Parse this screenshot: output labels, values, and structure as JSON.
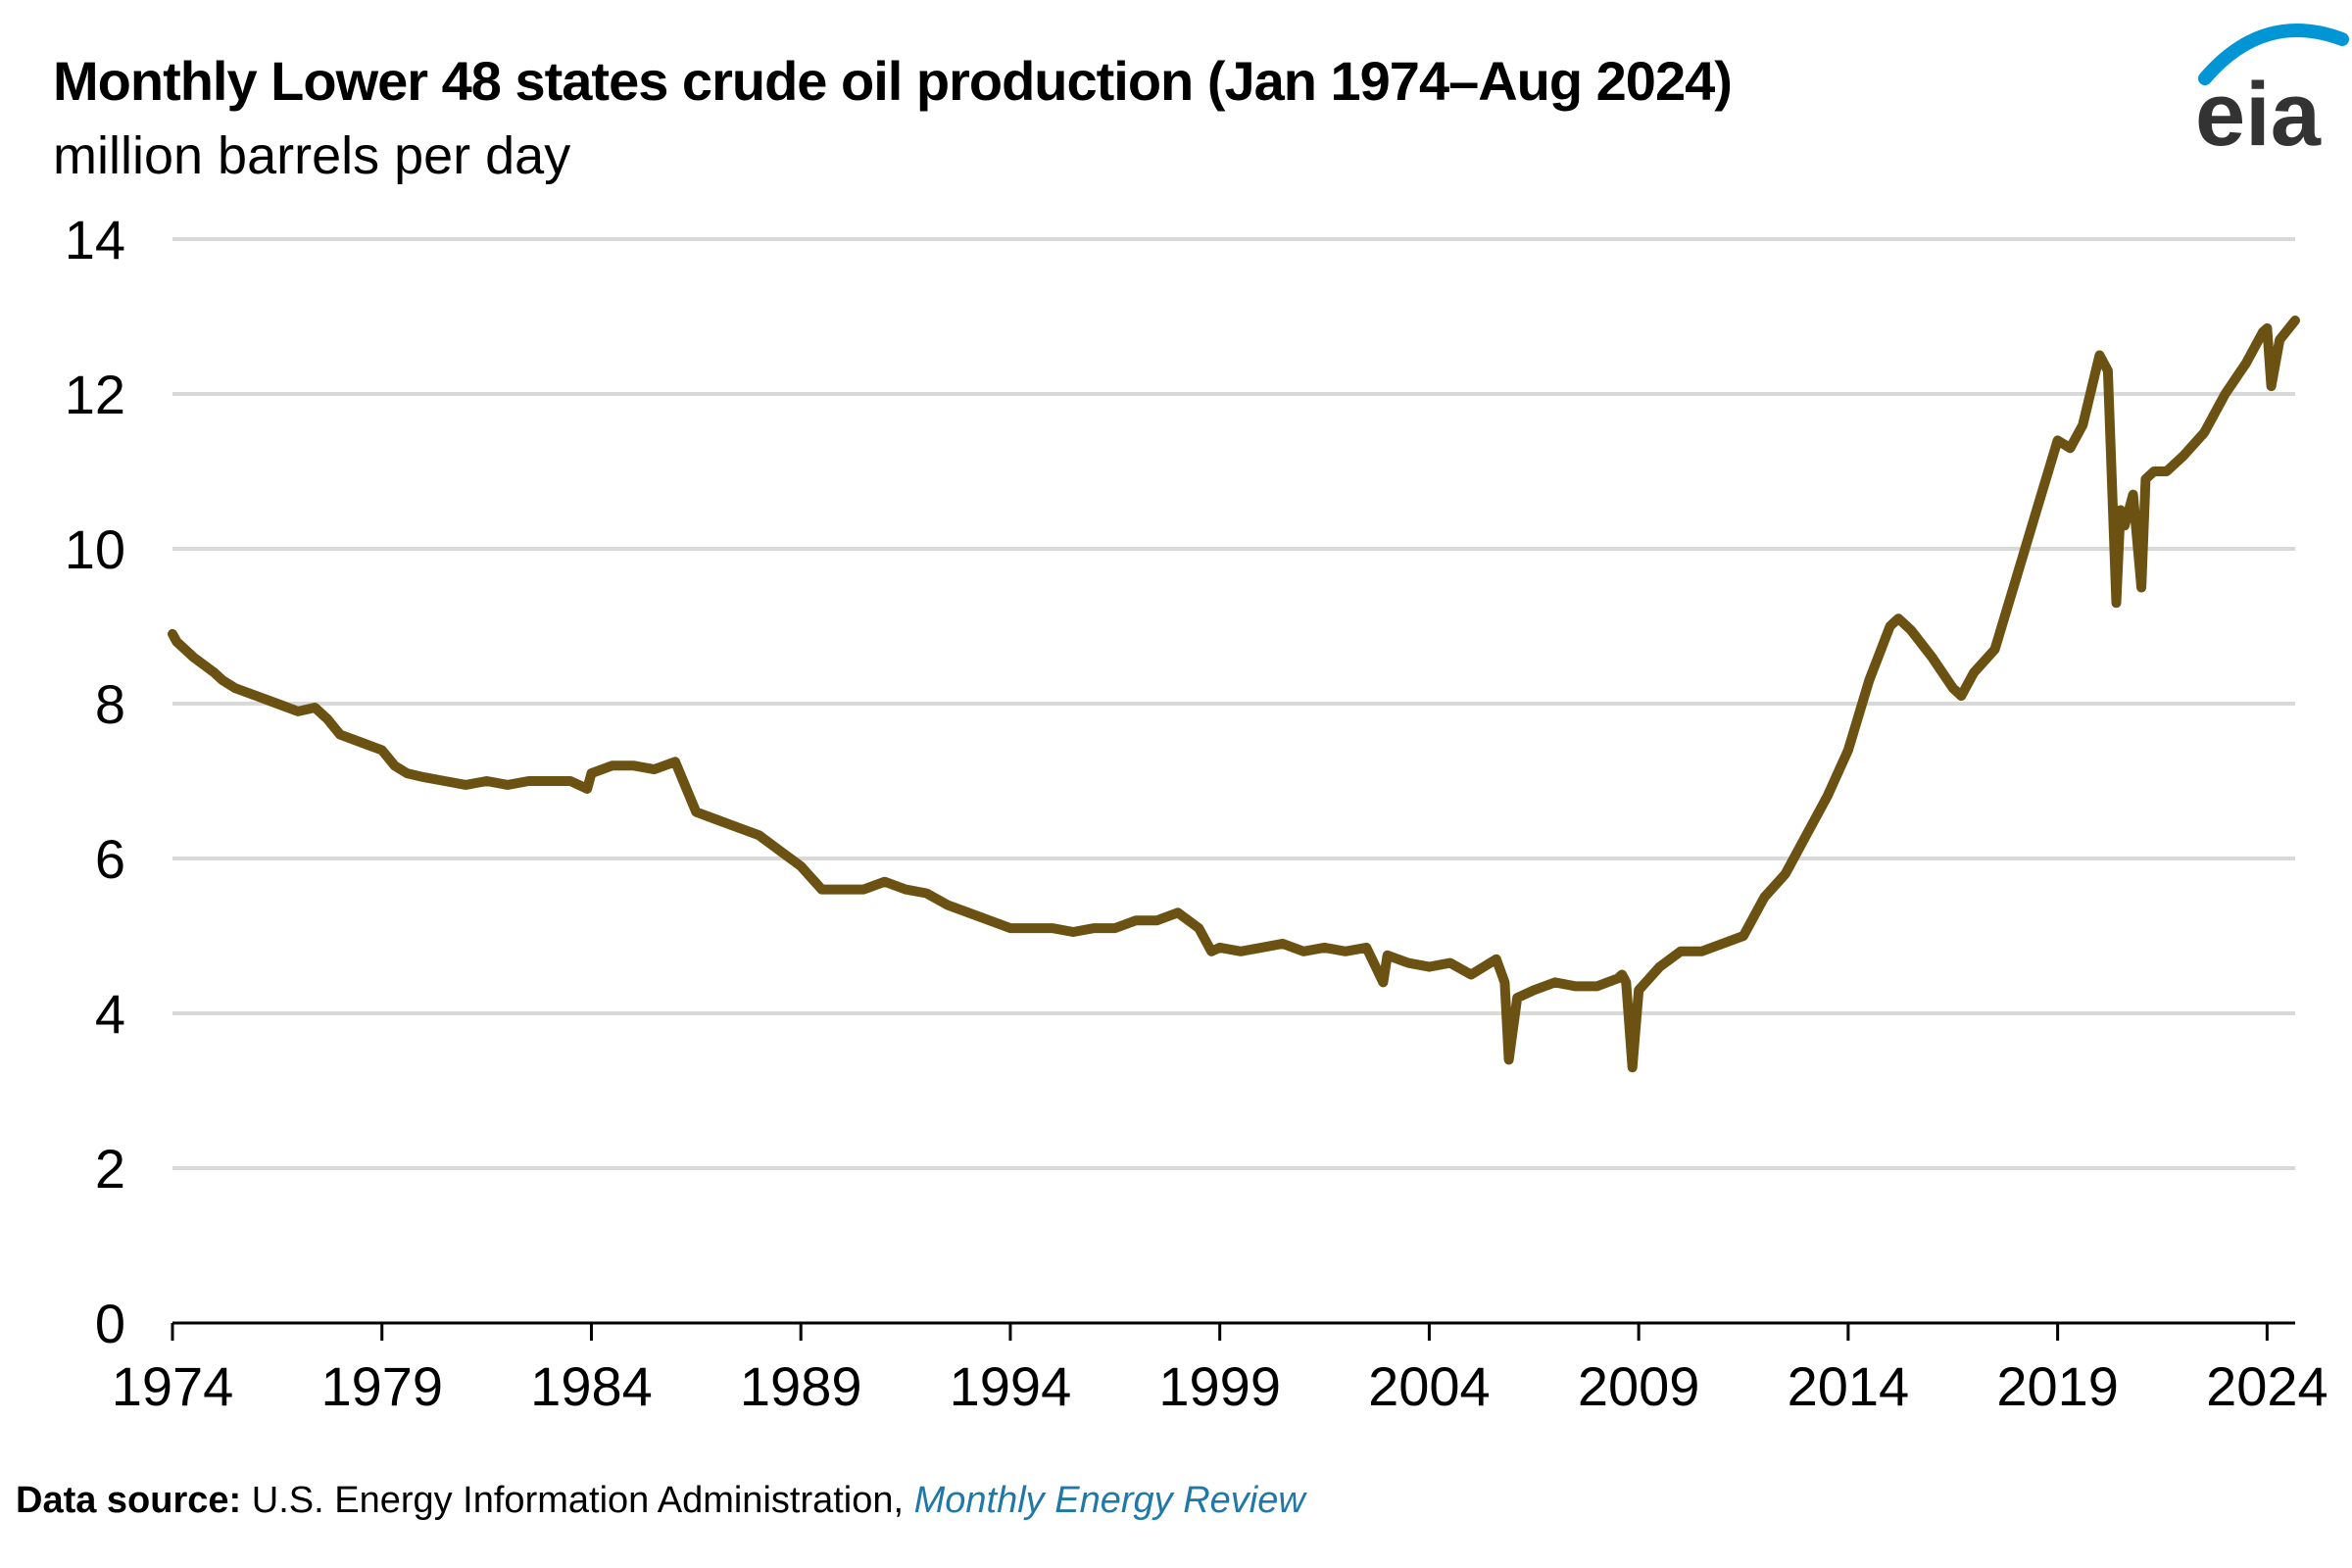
{
  "header": {
    "title": "Monthly Lower 48 states crude oil production (Jan 1974–Aug 2024)",
    "subtitle": "million barrels per day"
  },
  "logo": {
    "text": "eia",
    "icon": "eia-logo",
    "arc_color": "#0096d6",
    "text_color": "#333333"
  },
  "footer": {
    "source_label": "Data source:",
    "source_text": " U.S. Energy Information Administration, ",
    "source_link": "Monthly Energy Review",
    "link_color": "#1f78a8"
  },
  "chart_data": {
    "type": "line",
    "title": "Monthly Lower 48 states crude oil production (Jan 1974–Aug 2024)",
    "ylabel": "million barrels per day",
    "xlim": [
      1974,
      2024.67
    ],
    "ylim": [
      0,
      14
    ],
    "yticks": [
      0,
      2,
      4,
      6,
      8,
      10,
      12,
      14
    ],
    "xticks": [
      1974,
      1979,
      1984,
      1989,
      1994,
      1999,
      2004,
      2009,
      2014,
      2019,
      2024
    ],
    "grid": true,
    "line_color": "#6b5213",
    "series": [
      {
        "x": [
          1974.0,
          1974.1,
          1974.5,
          1975.0,
          1975.2,
          1975.5,
          1976.0,
          1976.5,
          1977.0,
          1977.4,
          1977.7,
          1978.0,
          1978.5,
          1979.0,
          1979.3,
          1979.6,
          1980.0,
          1980.5,
          1981.0,
          1981.5,
          1982.0,
          1982.5,
          1983.0,
          1983.5,
          1983.9,
          1984.0,
          1984.5,
          1985.0,
          1985.5,
          1986.0,
          1986.5,
          1987.0,
          1987.5,
          1988.0,
          1988.5,
          1989.0,
          1989.5,
          1990.0,
          1990.5,
          1991.0,
          1991.5,
          1992.0,
          1992.5,
          1993.0,
          1993.5,
          1994.0,
          1994.5,
          1995.0,
          1995.5,
          1996.0,
          1996.5,
          1997.0,
          1997.5,
          1998.0,
          1998.5,
          1998.8,
          1999.0,
          1999.5,
          2000.0,
          2000.5,
          2001.0,
          2001.5,
          2002.0,
          2002.5,
          2002.9,
          2003.0,
          2003.5,
          2004.0,
          2004.5,
          2005.0,
          2005.3,
          2005.6,
          2005.8,
          2005.9,
          2006.1,
          2006.5,
          2007.0,
          2007.5,
          2008.0,
          2008.5,
          2008.6,
          2008.7,
          2008.85,
          2009.0,
          2009.5,
          2010.0,
          2010.5,
          2011.0,
          2011.5,
          2012.0,
          2012.5,
          2013.0,
          2013.5,
          2014.0,
          2014.5,
          2015.0,
          2015.2,
          2015.5,
          2016.0,
          2016.5,
          2016.7,
          2017.0,
          2017.5,
          2018.0,
          2018.5,
          2019.0,
          2019.3,
          2019.6,
          2020.0,
          2020.2,
          2020.4,
          2020.5,
          2020.6,
          2020.8,
          2021.0,
          2021.1,
          2021.3,
          2021.6,
          2022.0,
          2022.5,
          2023.0,
          2023.5,
          2023.9,
          2024.0,
          2024.1,
          2024.3,
          2024.67
        ],
        "y": [
          8.9,
          8.8,
          8.6,
          8.4,
          8.3,
          8.2,
          8.1,
          8.0,
          7.9,
          7.95,
          7.8,
          7.6,
          7.5,
          7.4,
          7.2,
          7.1,
          7.05,
          7.0,
          6.95,
          7.0,
          6.95,
          7.0,
          7.0,
          7.0,
          6.9,
          7.1,
          7.2,
          7.2,
          7.15,
          7.25,
          6.6,
          6.5,
          6.4,
          6.3,
          6.1,
          5.9,
          5.6,
          5.6,
          5.6,
          5.7,
          5.6,
          5.55,
          5.4,
          5.3,
          5.2,
          5.1,
          5.1,
          5.1,
          5.05,
          5.1,
          5.1,
          5.2,
          5.2,
          5.3,
          5.1,
          4.8,
          4.85,
          4.8,
          4.85,
          4.9,
          4.8,
          4.85,
          4.8,
          4.85,
          4.4,
          4.75,
          4.65,
          4.6,
          4.65,
          4.5,
          4.6,
          4.7,
          4.4,
          3.4,
          4.2,
          4.3,
          4.4,
          4.35,
          4.35,
          4.45,
          4.5,
          4.4,
          3.3,
          4.3,
          4.6,
          4.8,
          4.8,
          4.9,
          5.0,
          5.5,
          5.8,
          6.3,
          6.8,
          7.4,
          8.3,
          9.0,
          9.1,
          8.95,
          8.6,
          8.2,
          8.1,
          8.4,
          8.7,
          9.6,
          10.5,
          11.4,
          11.3,
          11.6,
          12.5,
          12.3,
          9.3,
          10.5,
          10.3,
          10.7,
          9.5,
          10.9,
          11.0,
          11.0,
          11.2,
          11.5,
          12.0,
          12.4,
          12.8,
          12.85,
          12.1,
          12.7,
          12.95
        ]
      }
    ]
  }
}
